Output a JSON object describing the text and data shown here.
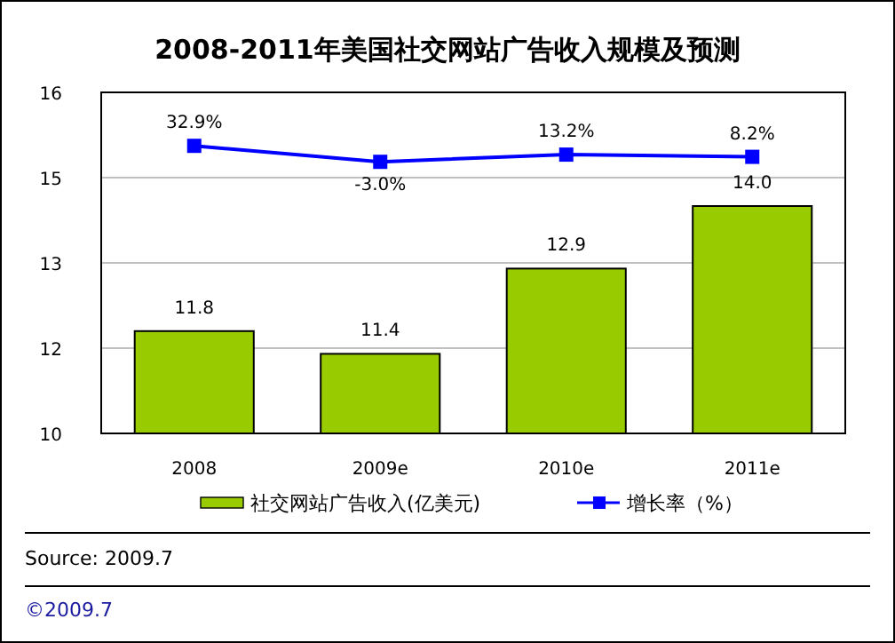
{
  "chart_data": {
    "type": "bar",
    "title": "2008-2011年美国社交网站广告收入规模及预测",
    "categories": [
      "2008",
      "2009e",
      "2010e",
      "2011e"
    ],
    "series": [
      {
        "name": "社交网站广告收入(亿美元)",
        "color": "#99cc00",
        "values": [
          11.8,
          11.4,
          12.9,
          14.0
        ],
        "value_labels": [
          "11.8",
          "11.4",
          "12.9",
          "14.0"
        ]
      },
      {
        "name": "增长率（%）",
        "type": "line",
        "axis": "y2",
        "color": "#0000ff",
        "marker": "square",
        "values": [
          32.9,
          -3.0,
          13.2,
          8.2
        ],
        "value_labels": [
          "32.9%",
          "-3.0%",
          "13.2%",
          "8.2%"
        ]
      }
    ],
    "data_labels": true,
    "ylim": [
      10,
      16
    ],
    "yticks": [
      10,
      {
        "value": 11.5,
        "label": "12"
      },
      13,
      {
        "value": 14.5,
        "label": "15"
      },
      16
    ],
    "y2lim": [
      -613,
      153
    ],
    "grid": "y",
    "legend": "bottom",
    "annotations": [
      "Source: 2009.7",
      "©2009.7"
    ]
  }
}
